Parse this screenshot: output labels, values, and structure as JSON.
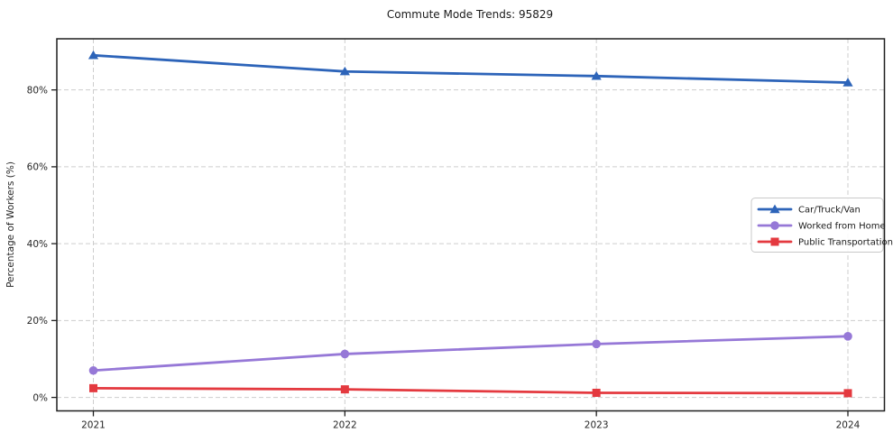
{
  "title": "Commute Mode Trends: 95829",
  "chart_data": {
    "type": "line",
    "title": "Commute Mode Trends: 95829",
    "xlabel": "",
    "ylabel": "Percentage of Workers (%)",
    "x": [
      2021,
      2022,
      2023,
      2024
    ],
    "xtick_labels": [
      "2021",
      "2022",
      "2023",
      "2024"
    ],
    "yticks": [
      0,
      20,
      40,
      60,
      80
    ],
    "ytick_labels": [
      "0%",
      "20%",
      "40%",
      "60%",
      "80%"
    ],
    "ylim": [
      -3.5,
      93.3
    ],
    "grid": true,
    "grid_style": "dashed",
    "legend_position": "center-right",
    "series": [
      {
        "name": "Car/Truck/Van",
        "values": [
          89.0,
          84.8,
          83.6,
          81.9
        ],
        "color": "#2d64b9",
        "marker": "triangle"
      },
      {
        "name": "Worked from Home",
        "values": [
          7.0,
          11.3,
          13.9,
          15.9
        ],
        "color": "#9678d7",
        "marker": "circle"
      },
      {
        "name": "Public Transportation",
        "values": [
          2.4,
          2.1,
          1.2,
          1.1
        ],
        "color": "#e4393f",
        "marker": "square"
      }
    ],
    "colors": {
      "gridline": "#cdcdcd",
      "spine": "#1f1f1f",
      "background": "#ffffff",
      "legend_border": "#c9c9c9"
    }
  }
}
